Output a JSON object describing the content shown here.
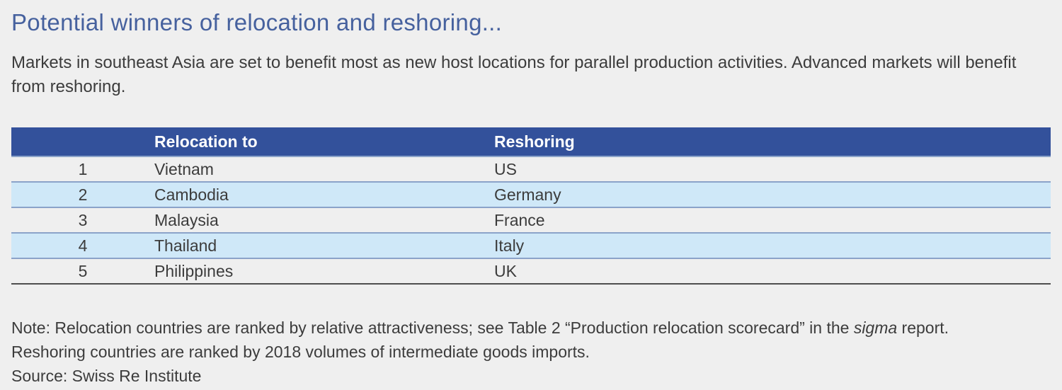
{
  "header": {
    "title": "Potential winners of relocation and reshoring...",
    "subtitle": "Markets in southeast Asia are set to benefit most as new host locations for parallel production activities. Advanced markets will benefit from reshoring."
  },
  "table": {
    "headers": {
      "rank": "",
      "relocation_to": "Relocation to",
      "reshoring": "Reshoring"
    },
    "rows": [
      {
        "rank": "1",
        "relocation_to": "Vietnam",
        "reshoring": "US"
      },
      {
        "rank": "2",
        "relocation_to": "Cambodia",
        "reshoring": "Germany"
      },
      {
        "rank": "3",
        "relocation_to": "Malaysia",
        "reshoring": "France"
      },
      {
        "rank": "4",
        "relocation_to": "Thailand",
        "reshoring": "Italy"
      },
      {
        "rank": "5",
        "relocation_to": "Philippines",
        "reshoring": "UK"
      }
    ]
  },
  "footnote": {
    "note_before_italic": "Note: Relocation countries are ranked by relative attractiveness; see Table 2 “Production relocation scorecard” in the ",
    "note_italic": "sigma",
    "note_after_italic": " report.",
    "note_line2": "Reshoring countries are ranked by 2018 volumes of intermediate goods imports.",
    "source": "Source: Swiss Re Institute"
  },
  "colors": {
    "page_background": "#efefef",
    "title_blue": "#46619e",
    "table_header_blue": "#33519b",
    "row_light_blue": "#cfe8f8",
    "row_divider_blue": "#8ba3c9",
    "bottom_rule_gray": "#4e4e4e",
    "body_text": "#3c3c3c"
  }
}
